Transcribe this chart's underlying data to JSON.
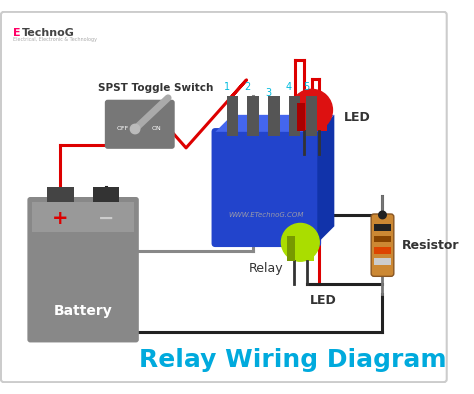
{
  "title": "Relay Wiring Diagram",
  "title_color": "#00aadd",
  "title_fontsize": 18,
  "bg_color": "#ffffff",
  "border_color": "#cccccc",
  "logo_color_e": "#ff0066",
  "logo_color_rest": "#444444",
  "watermark": "WWW.ETechnoG.COM",
  "watermark_color": "#9999aa",
  "relay_color": "#2244cc",
  "relay_label": "Relay",
  "battery_color": "#888888",
  "battery_label": "Battery",
  "battery_plus_color": "#dd0000",
  "switch_label": "SPST Toggle Switch",
  "switch_color": "#777777",
  "wire_red_color": "#dd0000",
  "wire_black_color": "#222222",
  "wire_gray_color": "#888888",
  "led_red_color": "#dd1111",
  "led_green_color": "#aadd00",
  "led_label": "LED",
  "resistor_body_color": "#cc8833",
  "resistor_label": "Resistor",
  "pin_label_color": "#00bbdd"
}
